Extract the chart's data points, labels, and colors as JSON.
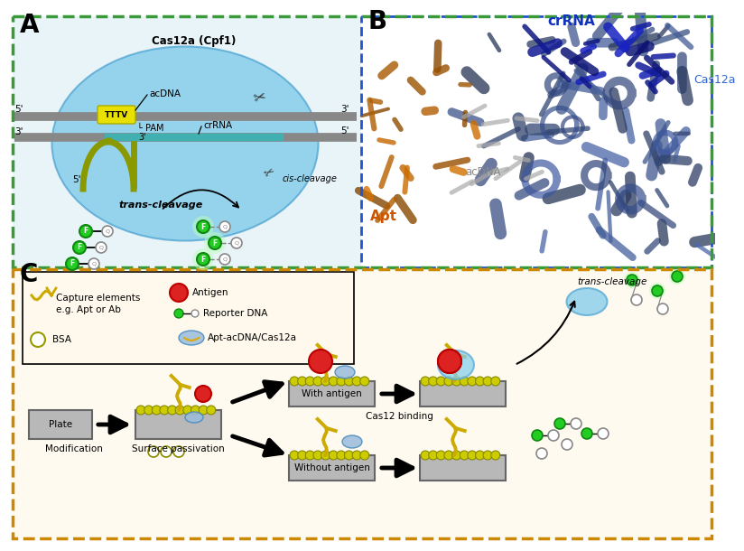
{
  "bg_color": "#ffffff",
  "border_green": "#3a9a3a",
  "border_blue": "#2255cc",
  "border_orange": "#cc8800",
  "cas_blob_color": "#87ceeb",
  "cas_blob_edge": "#5aaad5",
  "dna_gray": "#888888",
  "crispr_teal": "#40b0b0",
  "olive_yellow": "#8b9900",
  "pam_yellow": "#e8e000",
  "fluor_green": "#22cc22",
  "antigen_red": "#dd2222",
  "apt_color": "#ccaa00",
  "apt_color2": "#ddbb00",
  "legend_bg": "#fef9ec",
  "plate_gray": "#a0a0a0",
  "bead_yellow": "#cccc00",
  "cas_light_blue": "#aaccee",
  "label_A": "A",
  "label_B": "B",
  "label_C": "C",
  "title_cas12a": "Cas12a (Cpf1)",
  "label_acDNA": "acDNA",
  "label_PAM": "PAM",
  "label_TTTV": "TTTV",
  "label_crRNA": "crRNA",
  "label_cis": "cis-cleavage",
  "label_trans": "trans-cleavage",
  "label_crRNA_B": "crRNA",
  "label_cas12a_B": "Cas12a",
  "label_acDNA_B": "acDNA",
  "label_Apt_B": "Apt",
  "legend_capture": "Capture elements\ne.g. Apt or Ab",
  "legend_antigen": "Antigen",
  "legend_reporter": "Reporter DNA",
  "legend_BSA": "BSA",
  "legend_apt_cas": "Apt-acDNA/Cas12a",
  "label_modification": "Modification",
  "label_surface": "Surface passivation",
  "label_plate": "Plate",
  "label_with_antigen": "With antigen",
  "label_without_antigen": "Without antigen",
  "label_cas12_binding": "Cas12 binding",
  "label_trans_C": "trans-cleavage"
}
